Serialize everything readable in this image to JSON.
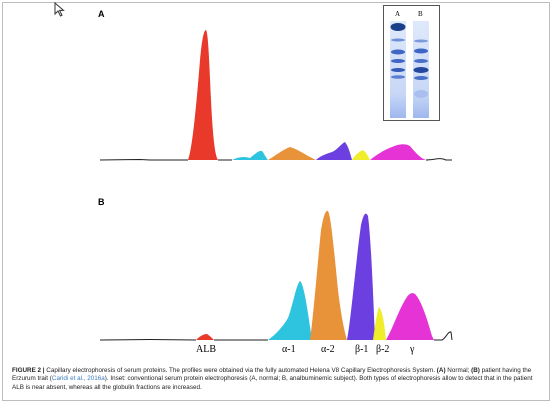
{
  "panels": [
    {
      "label": "A"
    },
    {
      "label": "B"
    }
  ],
  "inset": {
    "lane_labels": [
      "A",
      "B"
    ]
  },
  "fraction_labels": [
    "ALB",
    "α-1",
    "α-2",
    "β-1",
    "β-2",
    "γ"
  ],
  "fraction_colors": {
    "ALB": "#e8392b",
    "alpha1": "#2ec4e0",
    "alpha2": "#e8923a",
    "beta1": "#6b3fe0",
    "beta2": "#f0ee2a",
    "gamma": "#e633d6"
  },
  "caption": {
    "figure_label": "FIGURE 2 |",
    "text_1": " Capillary electrophoresis of serum proteins. The profiles were obtained via the fully automated Helena V8 Capillary Electrophoresis System. ",
    "a_label": "(A)",
    "text_2": " Normal; ",
    "b_label": "(B)",
    "text_3": " patient having the Erzurum trait (",
    "citation": "Caridi et al., 2016a",
    "text_4": "). Inset: conventional serum protein electrophoresis (A, normal; B, analbuminemic subject). Both types of electrophoresis allow to detect that in the patient ALB is near absent, whereas all the globulin fractions are increased."
  }
}
